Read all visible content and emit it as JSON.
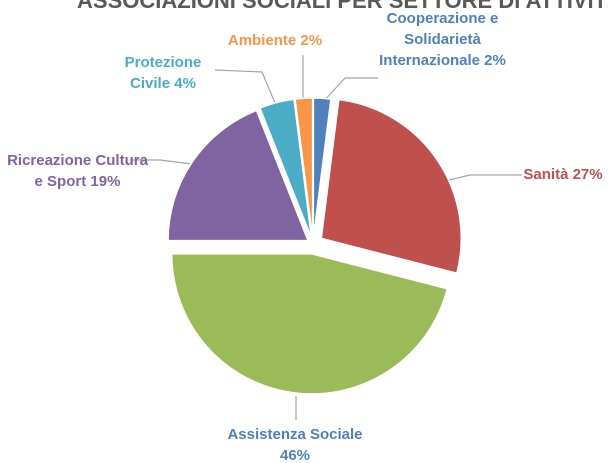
{
  "chart_data": {
    "type": "pie",
    "title": "ASSOCIAZIONI SOCIALI PER SETTORE DI ATTIVITÀ",
    "categories": [
      "Cooperazione e Solidarietà Internazionale",
      "Sanità",
      "Assistenza Sociale",
      "Ricreazione Cultura e Sport",
      "Protezione Civile",
      "Ambiente"
    ],
    "values": [
      2,
      27,
      46,
      19,
      4,
      2
    ],
    "value_labels": [
      "2%",
      "27%",
      "46%",
      "19%",
      "4%",
      "2%"
    ],
    "colors": [
      "#4f81bd",
      "#c0504d",
      "#9bbb59",
      "#8064a2",
      "#4bacc6",
      "#f79646"
    ]
  }
}
